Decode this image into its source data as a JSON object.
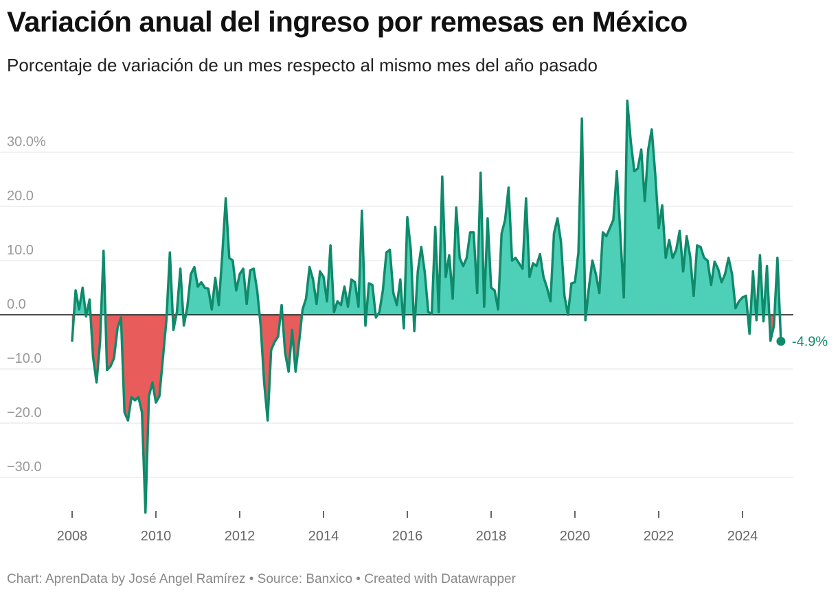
{
  "title": "Variación anual del ingreso por remesas en México",
  "subtitle": "Porcentaje de variación de un mes respecto al mismo mes del año pasado",
  "footer": "Chart: AprenData by José Angel Ramírez • Source: Banxico • Created with Datawrapper",
  "colors": {
    "line": "#0f8a6a",
    "positive_fill": "#4ecfb8",
    "negative_fill": "#e85c5c",
    "grid": "#e3e3e3"
  },
  "chart_data": {
    "type": "area",
    "title": "Variación anual del ingreso por remesas en México",
    "subtitle": "Porcentaje de variación de un mes respecto al mismo mes del año pasado",
    "xlabel": "",
    "ylabel": "",
    "ylim": [
      -36,
      39
    ],
    "xlim": [
      2008,
      2025.4
    ],
    "grid": true,
    "y_ticks": [
      30,
      20,
      10,
      0,
      -10,
      -20,
      -30
    ],
    "y_tick_labels": [
      "30.0%",
      "20.0",
      "10.0",
      "0.0",
      "−10.0",
      "−20.0",
      "−30.0"
    ],
    "x_ticks": [
      2008,
      2010,
      2012,
      2014,
      2016,
      2018,
      2020,
      2022,
      2024
    ],
    "x_tick_labels": [
      "2008",
      "2010",
      "2012",
      "2014",
      "2016",
      "2018",
      "2020",
      "2022",
      "2024"
    ],
    "end_label": "-4.9%",
    "series": [
      {
        "x": [
          "2008-01",
          "2008-02",
          "2008-03",
          "2008-04",
          "2008-05",
          "2008-06",
          "2008-07",
          "2008-08",
          "2008-09",
          "2008-10",
          "2008-11",
          "2008-12",
          "2009-01",
          "2009-02",
          "2009-03",
          "2009-04",
          "2009-05",
          "2009-06",
          "2009-07",
          "2009-08",
          "2009-09",
          "2009-10",
          "2009-11",
          "2009-12",
          "2010-01",
          "2010-02",
          "2010-03",
          "2010-04",
          "2010-05",
          "2010-06",
          "2010-07",
          "2010-08",
          "2010-09",
          "2010-10",
          "2010-11",
          "2010-12",
          "2011-01",
          "2011-02",
          "2011-03",
          "2011-04",
          "2011-05",
          "2011-06",
          "2011-07",
          "2011-08",
          "2011-09",
          "2011-10",
          "2011-11",
          "2011-12",
          "2012-01",
          "2012-02",
          "2012-03",
          "2012-04",
          "2012-05",
          "2012-06",
          "2012-07",
          "2012-08",
          "2012-09",
          "2012-10",
          "2012-11",
          "2012-12",
          "2013-01",
          "2013-02",
          "2013-03",
          "2013-04",
          "2013-05",
          "2013-06",
          "2013-07",
          "2013-08",
          "2013-09",
          "2013-10",
          "2013-11",
          "2013-12",
          "2014-01",
          "2014-02",
          "2014-03",
          "2014-04",
          "2014-05",
          "2014-06",
          "2014-07",
          "2014-08",
          "2014-09",
          "2014-10",
          "2014-11",
          "2014-12",
          "2015-01",
          "2015-02",
          "2015-03",
          "2015-04",
          "2015-05",
          "2015-06",
          "2015-07",
          "2015-08",
          "2015-09",
          "2015-10",
          "2015-11",
          "2015-12",
          "2016-01",
          "2016-02",
          "2016-03",
          "2016-04",
          "2016-05",
          "2016-06",
          "2016-07",
          "2016-08",
          "2016-09",
          "2016-10",
          "2016-11",
          "2016-12",
          "2017-01",
          "2017-02",
          "2017-03",
          "2017-04",
          "2017-05",
          "2017-06",
          "2017-07",
          "2017-08",
          "2017-09",
          "2017-10",
          "2017-11",
          "2017-12",
          "2018-01",
          "2018-02",
          "2018-03",
          "2018-04",
          "2018-05",
          "2018-06",
          "2018-07",
          "2018-08",
          "2018-09",
          "2018-10",
          "2018-11",
          "2018-12",
          "2019-01",
          "2019-02",
          "2019-03",
          "2019-04",
          "2019-05",
          "2019-06",
          "2019-07",
          "2019-08",
          "2019-09",
          "2019-10",
          "2019-11",
          "2019-12",
          "2020-01",
          "2020-02",
          "2020-03",
          "2020-04",
          "2020-05",
          "2020-06",
          "2020-07",
          "2020-08",
          "2020-09",
          "2020-10",
          "2020-11",
          "2020-12",
          "2021-01",
          "2021-02",
          "2021-03",
          "2021-04",
          "2021-05",
          "2021-06",
          "2021-07",
          "2021-08",
          "2021-09",
          "2021-10",
          "2021-11",
          "2021-12",
          "2022-01",
          "2022-02",
          "2022-03",
          "2022-04",
          "2022-05",
          "2022-06",
          "2022-07",
          "2022-08",
          "2022-09",
          "2022-10",
          "2022-11",
          "2022-12",
          "2023-01",
          "2023-02",
          "2023-03",
          "2023-04",
          "2023-05",
          "2023-06",
          "2023-07",
          "2023-08",
          "2023-09",
          "2023-10",
          "2023-11",
          "2023-12",
          "2024-01",
          "2024-02",
          "2024-03",
          "2024-04",
          "2024-05",
          "2024-06",
          "2024-07",
          "2024-08",
          "2024-09",
          "2024-10",
          "2024-11",
          "2024-12"
        ],
        "values": [
          -4.8,
          4.5,
          1.0,
          5.0,
          -0.3,
          2.8,
          -7.8,
          -12.5,
          -5.0,
          11.8,
          -10.2,
          -9.5,
          -8.0,
          -2.5,
          -0.5,
          -18.0,
          -19.5,
          -15.2,
          -15.8,
          -15.2,
          -18.0,
          -36.5,
          -15.0,
          -12.5,
          -16.2,
          -15.0,
          -8.0,
          -1.0,
          11.5,
          -2.8,
          0.5,
          8.5,
          -2.0,
          1.5,
          7.5,
          8.8,
          5.2,
          6.0,
          5.0,
          4.8,
          1.0,
          6.8,
          1.8,
          11.0,
          21.5,
          10.5,
          10.0,
          4.5,
          7.5,
          8.5,
          2.0,
          8.2,
          8.5,
          4.5,
          -2.0,
          -12.5,
          -19.5,
          -6.5,
          -5.0,
          -4.0,
          1.8,
          -7.0,
          -10.5,
          -2.8,
          -10.5,
          -5.0,
          1.0,
          3.0,
          8.8,
          6.5,
          2.0,
          8.0,
          7.0,
          2.5,
          12.8,
          0.5,
          2.5,
          1.8,
          5.2,
          1.5,
          6.5,
          6.0,
          1.5,
          19.2,
          -2.0,
          5.8,
          5.5,
          -0.5,
          0.5,
          4.5,
          11.5,
          12.0,
          4.0,
          1.8,
          6.5,
          -2.5,
          18.0,
          12.0,
          -3.0,
          8.0,
          12.5,
          7.8,
          0.5,
          0.2,
          16.2,
          0.5,
          25.5,
          7.0,
          11.0,
          3.0,
          19.8,
          10.5,
          9.0,
          10.5,
          15.2,
          15.2,
          4.0,
          26.2,
          1.5,
          17.8,
          5.0,
          4.5,
          1.0,
          15.0,
          17.5,
          23.5,
          10.0,
          10.5,
          9.5,
          8.5,
          21.5,
          7.0,
          9.5,
          9.0,
          11.2,
          7.0,
          5.0,
          2.5,
          15.0,
          17.8,
          13.5,
          3.5,
          0.0,
          5.8,
          6.0,
          11.5,
          36.2,
          -1.0,
          5.0,
          10.0,
          7.5,
          4.0,
          15.2,
          14.5,
          16.0,
          17.5,
          26.5,
          15.0,
          3.2,
          39.5,
          32.0,
          26.5,
          27.0,
          30.5,
          21.0,
          30.5,
          34.2,
          26.0,
          16.0,
          20.2,
          10.5,
          13.8,
          10.5,
          12.0,
          15.5,
          8.0,
          14.5,
          10.8,
          3.5,
          12.8,
          12.5,
          10.5,
          10.0,
          5.5,
          9.8,
          8.5,
          6.0,
          7.5,
          10.5,
          7.5,
          1.2,
          2.5,
          3.2,
          3.5,
          -3.5,
          8.0,
          -1.0,
          11.0,
          -1.2,
          9.0,
          -4.8,
          -2.0,
          10.5,
          -4.9
        ]
      }
    ]
  }
}
